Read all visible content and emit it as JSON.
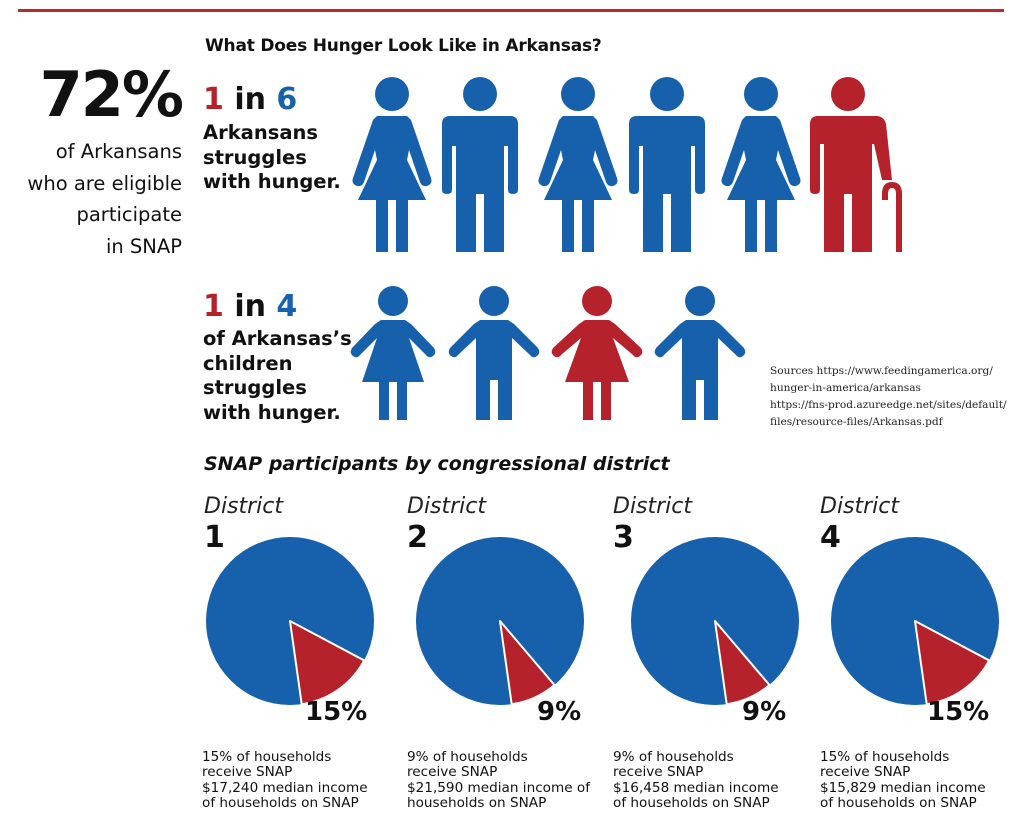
{
  "title": "What Does Hunger Look Like in Arkansas?",
  "snap_eligible": {
    "value": "72%",
    "lines": [
      "of Arkansans",
      "who are eligible",
      "participate",
      "in SNAP"
    ]
  },
  "adults": {
    "ratio_num": "1",
    "ratio_in": "in",
    "ratio_den": "6",
    "lines": [
      "Arkansans",
      "struggles",
      "with hunger."
    ]
  },
  "children": {
    "ratio_num": "1",
    "ratio_in": "in",
    "ratio_den": "4",
    "lines": [
      "of Arkansas’s",
      "children",
      "struggles",
      "with hunger."
    ]
  },
  "sources": [
    "Sources https://www.feedingamerica.org/",
    "hunger-in-america/arkansas",
    "https://fns-prod.azureedge.net/sites/default/",
    "files/resource-files/Arkansas.pdf"
  ],
  "colors": {
    "blue": "#1660ac",
    "red": "#b5222c",
    "accent_line": "#c0262d"
  },
  "icons": {
    "adults": [
      "woman-icon",
      "man-icon",
      "woman-icon",
      "man-icon",
      "woman-icon",
      "elderly-person-with-cane-icon"
    ],
    "adults_highlight_index": 5,
    "children": [
      "girl-icon",
      "boy-icon",
      "girl-icon",
      "boy-icon"
    ],
    "children_highlight_index": 2
  },
  "chart_data": {
    "type": "pie",
    "title": "SNAP participants by congressional district",
    "district_label": "District",
    "series": [
      {
        "district": "1",
        "pct": 15,
        "label": "15%",
        "lines": [
          "15% of households",
          "receive SNAP",
          "$17,240 median income",
          "of households on SNAP"
        ]
      },
      {
        "district": "2",
        "pct": 9,
        "label": "9%",
        "lines": [
          "9% of households",
          "receive SNAP",
          "$21,590 median income of",
          "households on SNAP"
        ]
      },
      {
        "district": "3",
        "pct": 9,
        "label": "9%",
        "lines": [
          "9% of households",
          "receive SNAP",
          "$16,458 median income",
          "of households on SNAP"
        ]
      },
      {
        "district": "4",
        "pct": 15,
        "label": "15%",
        "lines": [
          "15% of households",
          "receive SNAP",
          "$15,829 median income",
          "of households on SNAP"
        ]
      }
    ]
  }
}
